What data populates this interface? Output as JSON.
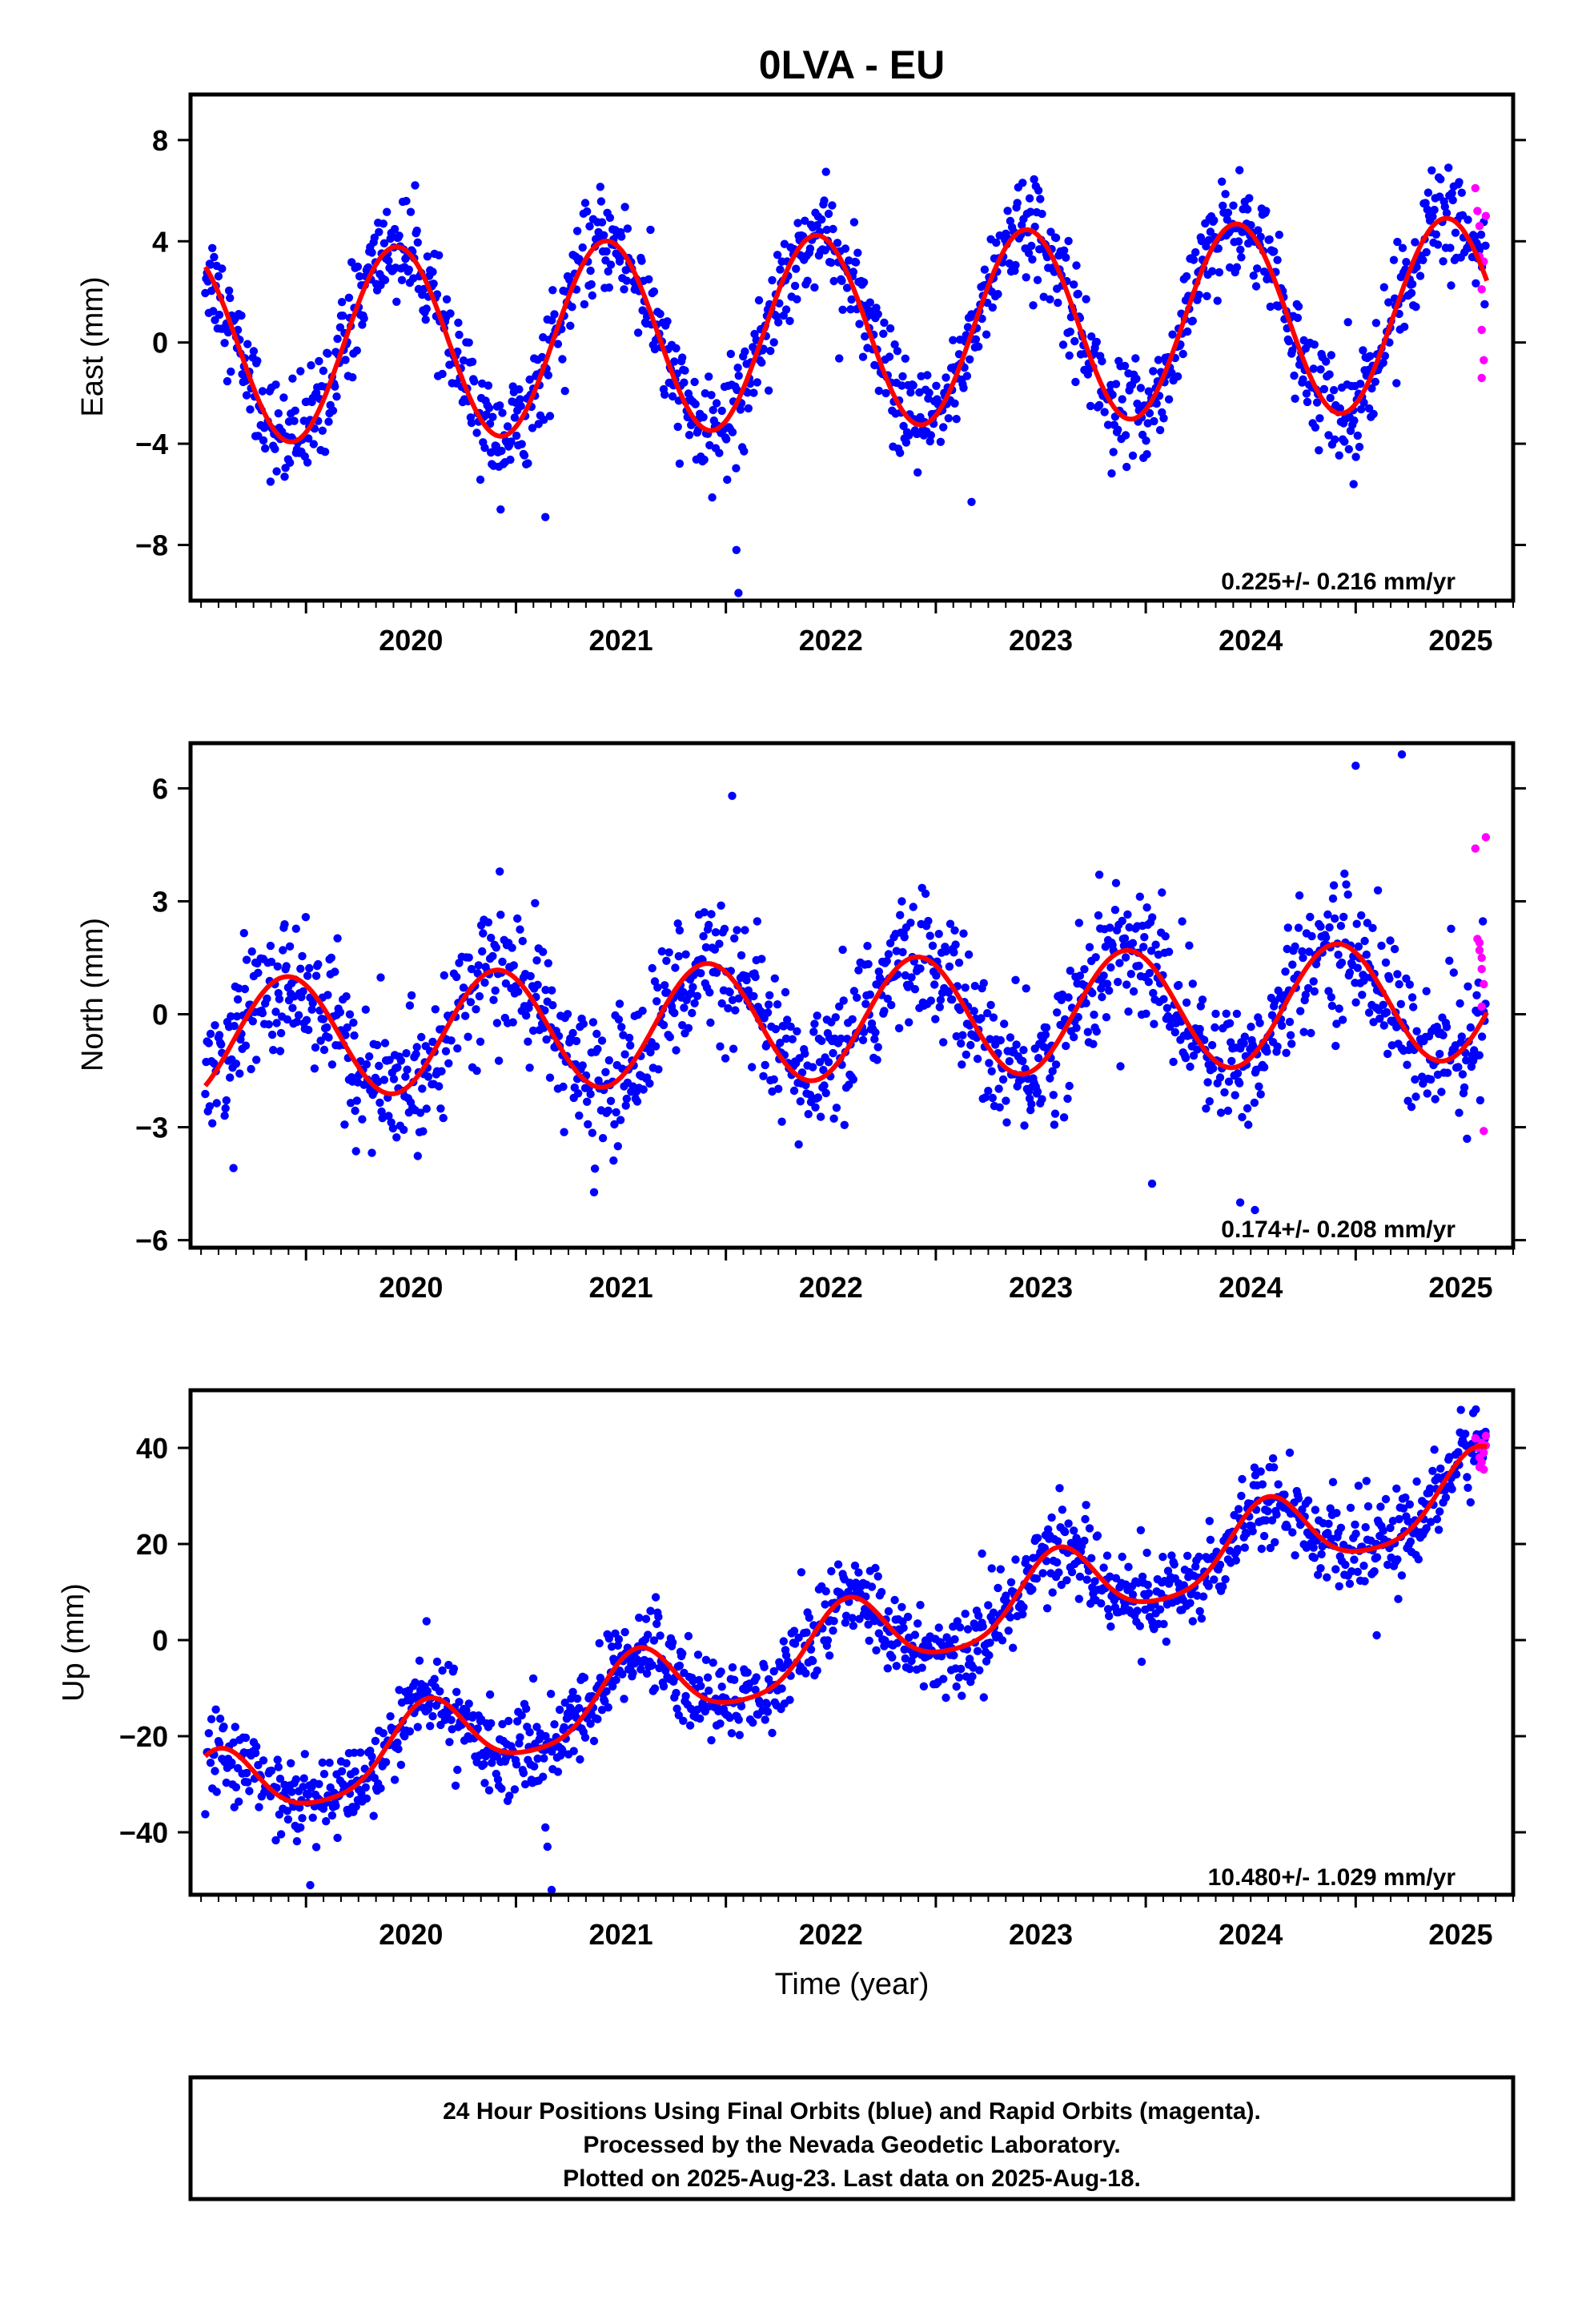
{
  "colors": {
    "final_orbits": "#0000ff",
    "rapid_orbits": "#ff00ff",
    "model": "#ff0000",
    "frame": "#000000"
  },
  "chart_data": {
    "type": "scatter",
    "title": "0LVA - EU",
    "xlabel": "Time (year)",
    "x_ticks": [
      "2020",
      "2021",
      "2022",
      "2023",
      "2024",
      "2025"
    ],
    "xlim": [
      2019.45,
      2025.75
    ],
    "grid": false,
    "panels": [
      {
        "id": "east",
        "ylabel": "East (mm)",
        "ylim": [
          -10.2,
          9.8
        ],
        "y_ticks": [
          -8,
          -4,
          0,
          4,
          8
        ],
        "y_tick_labels": [
          "−8",
          "−4",
          "0",
          "4",
          "8"
        ],
        "rate_text": "0.225+/- 0.216 mm/yr",
        "model": {
          "offset": 0.45,
          "rate": 0.225,
          "amplitude": 3.8,
          "peak_year": 2020.43,
          "semi_amplitude": 0.0
        },
        "final_orbits": {
          "noise_sd": 1.0,
          "outliers": [
            [
              2022.05,
              -8.2
            ],
            [
              2022.06,
              -9.9
            ],
            [
              2023.17,
              -6.3
            ],
            [
              2021.14,
              -6.9
            ],
            [
              2024.99,
              -5.6
            ]
          ]
        },
        "rapid_orbits": [
          [
            2025.57,
            6.1
          ],
          [
            2025.58,
            5.2
          ],
          [
            2025.59,
            4.6
          ],
          [
            2025.59,
            3.4
          ],
          [
            2025.6,
            2.1
          ],
          [
            2025.6,
            0.5
          ],
          [
            2025.61,
            -0.7
          ],
          [
            2025.6,
            -1.4
          ],
          [
            2025.61,
            3.2
          ],
          [
            2025.62,
            5.0
          ]
        ]
      },
      {
        "id": "north",
        "ylabel": "North (mm)",
        "ylim": [
          -6.2,
          7.2
        ],
        "y_ticks": [
          -6,
          -3,
          0,
          3,
          6
        ],
        "y_tick_labels": [
          "−6",
          "−3",
          "0",
          "3",
          "6"
        ],
        "rate_text": "0.174+/- 0.208 mm/yr",
        "model": {
          "offset": -0.15,
          "rate": 0.174,
          "amplitude": 1.6,
          "peak_year": 2019.91,
          "semi_amplitude": 0.0
        },
        "final_orbits": {
          "noise_sd": 0.9,
          "outliers": [
            [
              2024.45,
              -5.0
            ],
            [
              2024.52,
              -5.2
            ],
            [
              2024.03,
              -4.5
            ],
            [
              2025.0,
              6.6
            ],
            [
              2025.22,
              6.9
            ],
            [
              2022.03,
              5.8
            ]
          ]
        },
        "rapid_orbits": [
          [
            2025.57,
            4.4
          ],
          [
            2025.58,
            2.0
          ],
          [
            2025.59,
            1.7
          ],
          [
            2025.6,
            1.5
          ],
          [
            2025.6,
            1.2
          ],
          [
            2025.61,
            0.8
          ],
          [
            2025.6,
            0.2
          ],
          [
            2025.61,
            -3.1
          ],
          [
            2025.62,
            4.7
          ],
          [
            2025.59,
            1.9
          ]
        ]
      },
      {
        "id": "up",
        "ylabel": "Up (mm)",
        "ylim": [
          -53,
          52
        ],
        "y_ticks": [
          -40,
          -20,
          0,
          20,
          40
        ],
        "y_tick_labels": [
          "−40",
          "−20",
          "0",
          "20",
          "40"
        ],
        "rate_text": "10.480+/- 1.029 mm/yr",
        "model": {
          "offset": -1.5,
          "rate": 10.48,
          "amplitude": 8.0,
          "peak_year": 2020.58,
          "semi_amplitude": 1.5
        },
        "final_orbits": {
          "noise_sd": 4.5,
          "outliers": [
            [
              2021.15,
              -43.0
            ],
            [
              2021.17,
              -52.0
            ],
            [
              2020.02,
              -51.0
            ],
            [
              2021.14,
              -39.0
            ],
            [
              2023.22,
              18.0
            ],
            [
              2025.1,
              1.0
            ]
          ]
        },
        "rapid_orbits": [
          [
            2025.57,
            42.0
          ],
          [
            2025.58,
            40.0
          ],
          [
            2025.59,
            38.0
          ],
          [
            2025.6,
            37.0
          ],
          [
            2025.61,
            35.5
          ],
          [
            2025.6,
            41.0
          ],
          [
            2025.62,
            42.5
          ],
          [
            2025.61,
            39.0
          ],
          [
            2025.59,
            36.0
          ],
          [
            2025.62,
            40.5
          ]
        ]
      }
    ]
  },
  "footer": {
    "line1": "24 Hour Positions Using Final Orbits (blue) and Rapid Orbits (magenta).",
    "line2": "Processed by the Nevada Geodetic Laboratory.",
    "line3": "Plotted on 2025-Aug-23. Last data on 2025-Aug-18."
  }
}
